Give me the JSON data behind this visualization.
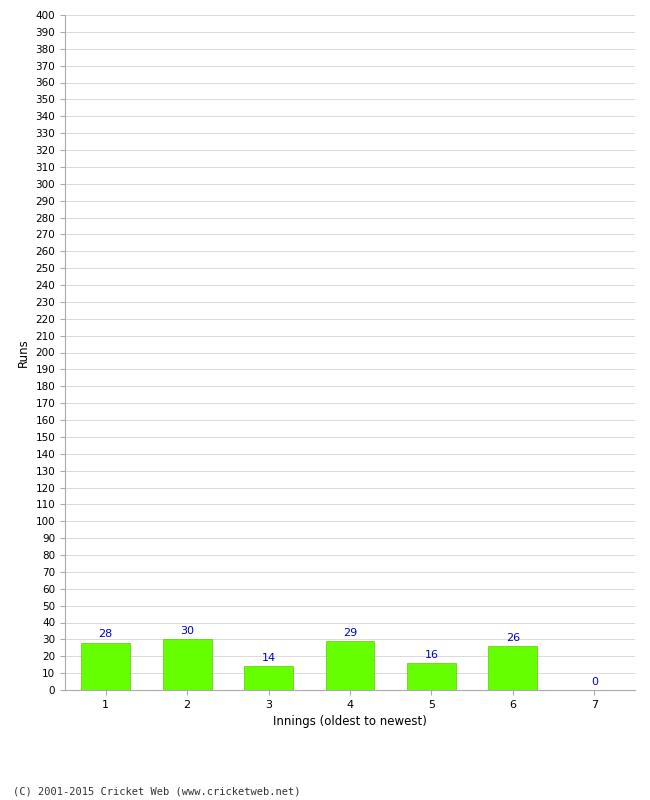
{
  "categories": [
    "1",
    "2",
    "3",
    "4",
    "5",
    "6",
    "7"
  ],
  "values": [
    28,
    30,
    14,
    29,
    16,
    26,
    0
  ],
  "bar_color": "#66ff00",
  "bar_edge_color": "#55cc00",
  "value_color": "#0000cc",
  "xlabel": "Innings (oldest to newest)",
  "ylabel": "Runs",
  "ylim": [
    0,
    400
  ],
  "ytick_step": 10,
  "background_color": "#ffffff",
  "grid_color": "#cccccc",
  "footer": "(C) 2001-2015 Cricket Web (www.cricketweb.net)"
}
